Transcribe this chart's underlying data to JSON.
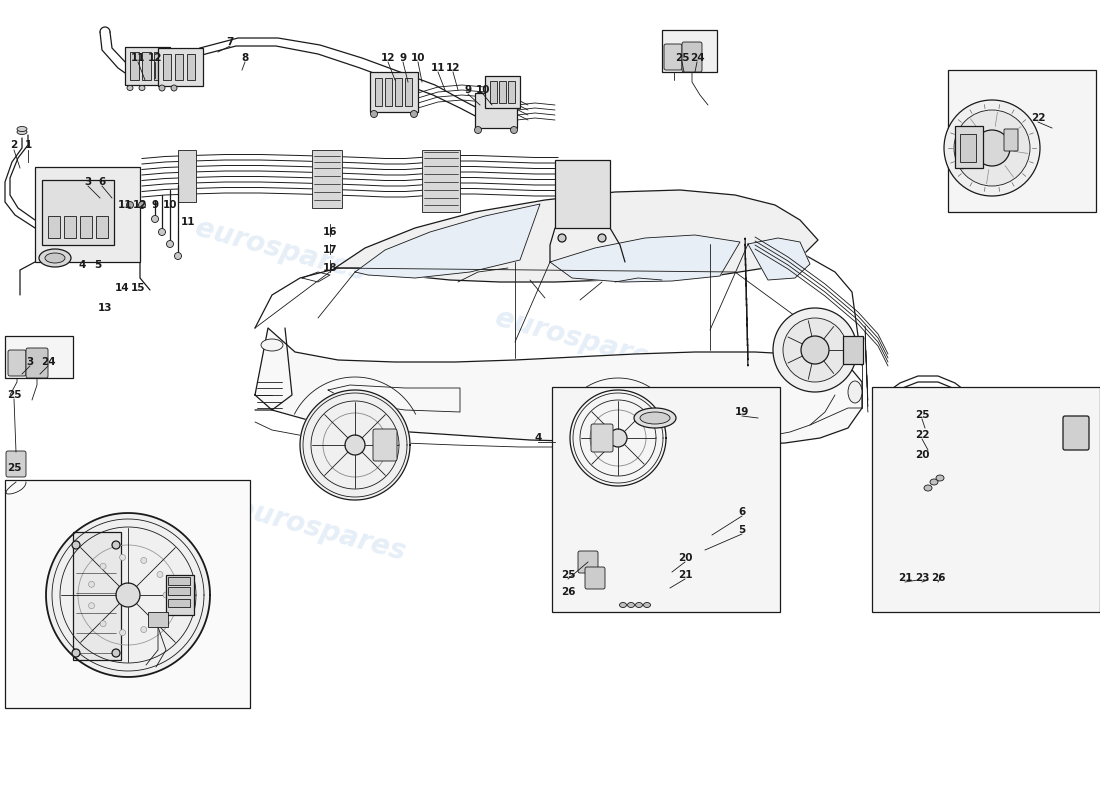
{
  "bg": "#ffffff",
  "lc": "#1a1a1a",
  "wm_color": "#b8cfe8",
  "wm_alpha": 0.35,
  "fig_w": 11.0,
  "fig_h": 8.0,
  "dpi": 100,
  "labels": [
    [
      "11",
      1.38,
      7.42
    ],
    [
      "12",
      1.55,
      7.42
    ],
    [
      "7",
      2.3,
      7.58
    ],
    [
      "8",
      2.45,
      7.42
    ],
    [
      "2",
      0.14,
      6.55
    ],
    [
      "1",
      0.28,
      6.55
    ],
    [
      "3",
      0.88,
      6.18
    ],
    [
      "6",
      1.02,
      6.18
    ],
    [
      "11",
      1.25,
      5.95
    ],
    [
      "12",
      1.4,
      5.95
    ],
    [
      "9",
      1.55,
      5.95
    ],
    [
      "10",
      1.7,
      5.95
    ],
    [
      "11",
      1.88,
      5.78
    ],
    [
      "5",
      0.98,
      5.35
    ],
    [
      "4",
      0.82,
      5.35
    ],
    [
      "14",
      1.22,
      5.12
    ],
    [
      "15",
      1.38,
      5.12
    ],
    [
      "13",
      1.05,
      4.92
    ],
    [
      "16",
      3.3,
      5.68
    ],
    [
      "17",
      3.3,
      5.5
    ],
    [
      "18",
      3.3,
      5.32
    ],
    [
      "12",
      3.88,
      7.42
    ],
    [
      "9",
      4.03,
      7.42
    ],
    [
      "10",
      4.18,
      7.42
    ],
    [
      "11",
      4.38,
      7.32
    ],
    [
      "12",
      4.53,
      7.32
    ],
    [
      "9",
      4.68,
      7.1
    ],
    [
      "10",
      4.83,
      7.1
    ],
    [
      "25",
      6.82,
      7.42
    ],
    [
      "24",
      6.97,
      7.42
    ],
    [
      "22",
      10.38,
      6.82
    ],
    [
      "3",
      0.3,
      4.38
    ],
    [
      "24",
      0.48,
      4.38
    ],
    [
      "25",
      0.14,
      4.05
    ],
    [
      "25",
      0.14,
      3.32
    ],
    [
      "4",
      5.38,
      3.62
    ],
    [
      "25",
      5.68,
      2.25
    ],
    [
      "26",
      5.68,
      2.08
    ],
    [
      "19",
      7.42,
      3.88
    ],
    [
      "6",
      7.42,
      2.88
    ],
    [
      "5",
      7.42,
      2.7
    ],
    [
      "20",
      6.85,
      2.42
    ],
    [
      "21",
      6.85,
      2.25
    ],
    [
      "25",
      9.22,
      3.85
    ],
    [
      "22",
      9.22,
      3.65
    ],
    [
      "20",
      9.22,
      3.45
    ],
    [
      "21",
      9.05,
      2.22
    ],
    [
      "23",
      9.22,
      2.22
    ],
    [
      "26",
      9.38,
      2.22
    ]
  ]
}
